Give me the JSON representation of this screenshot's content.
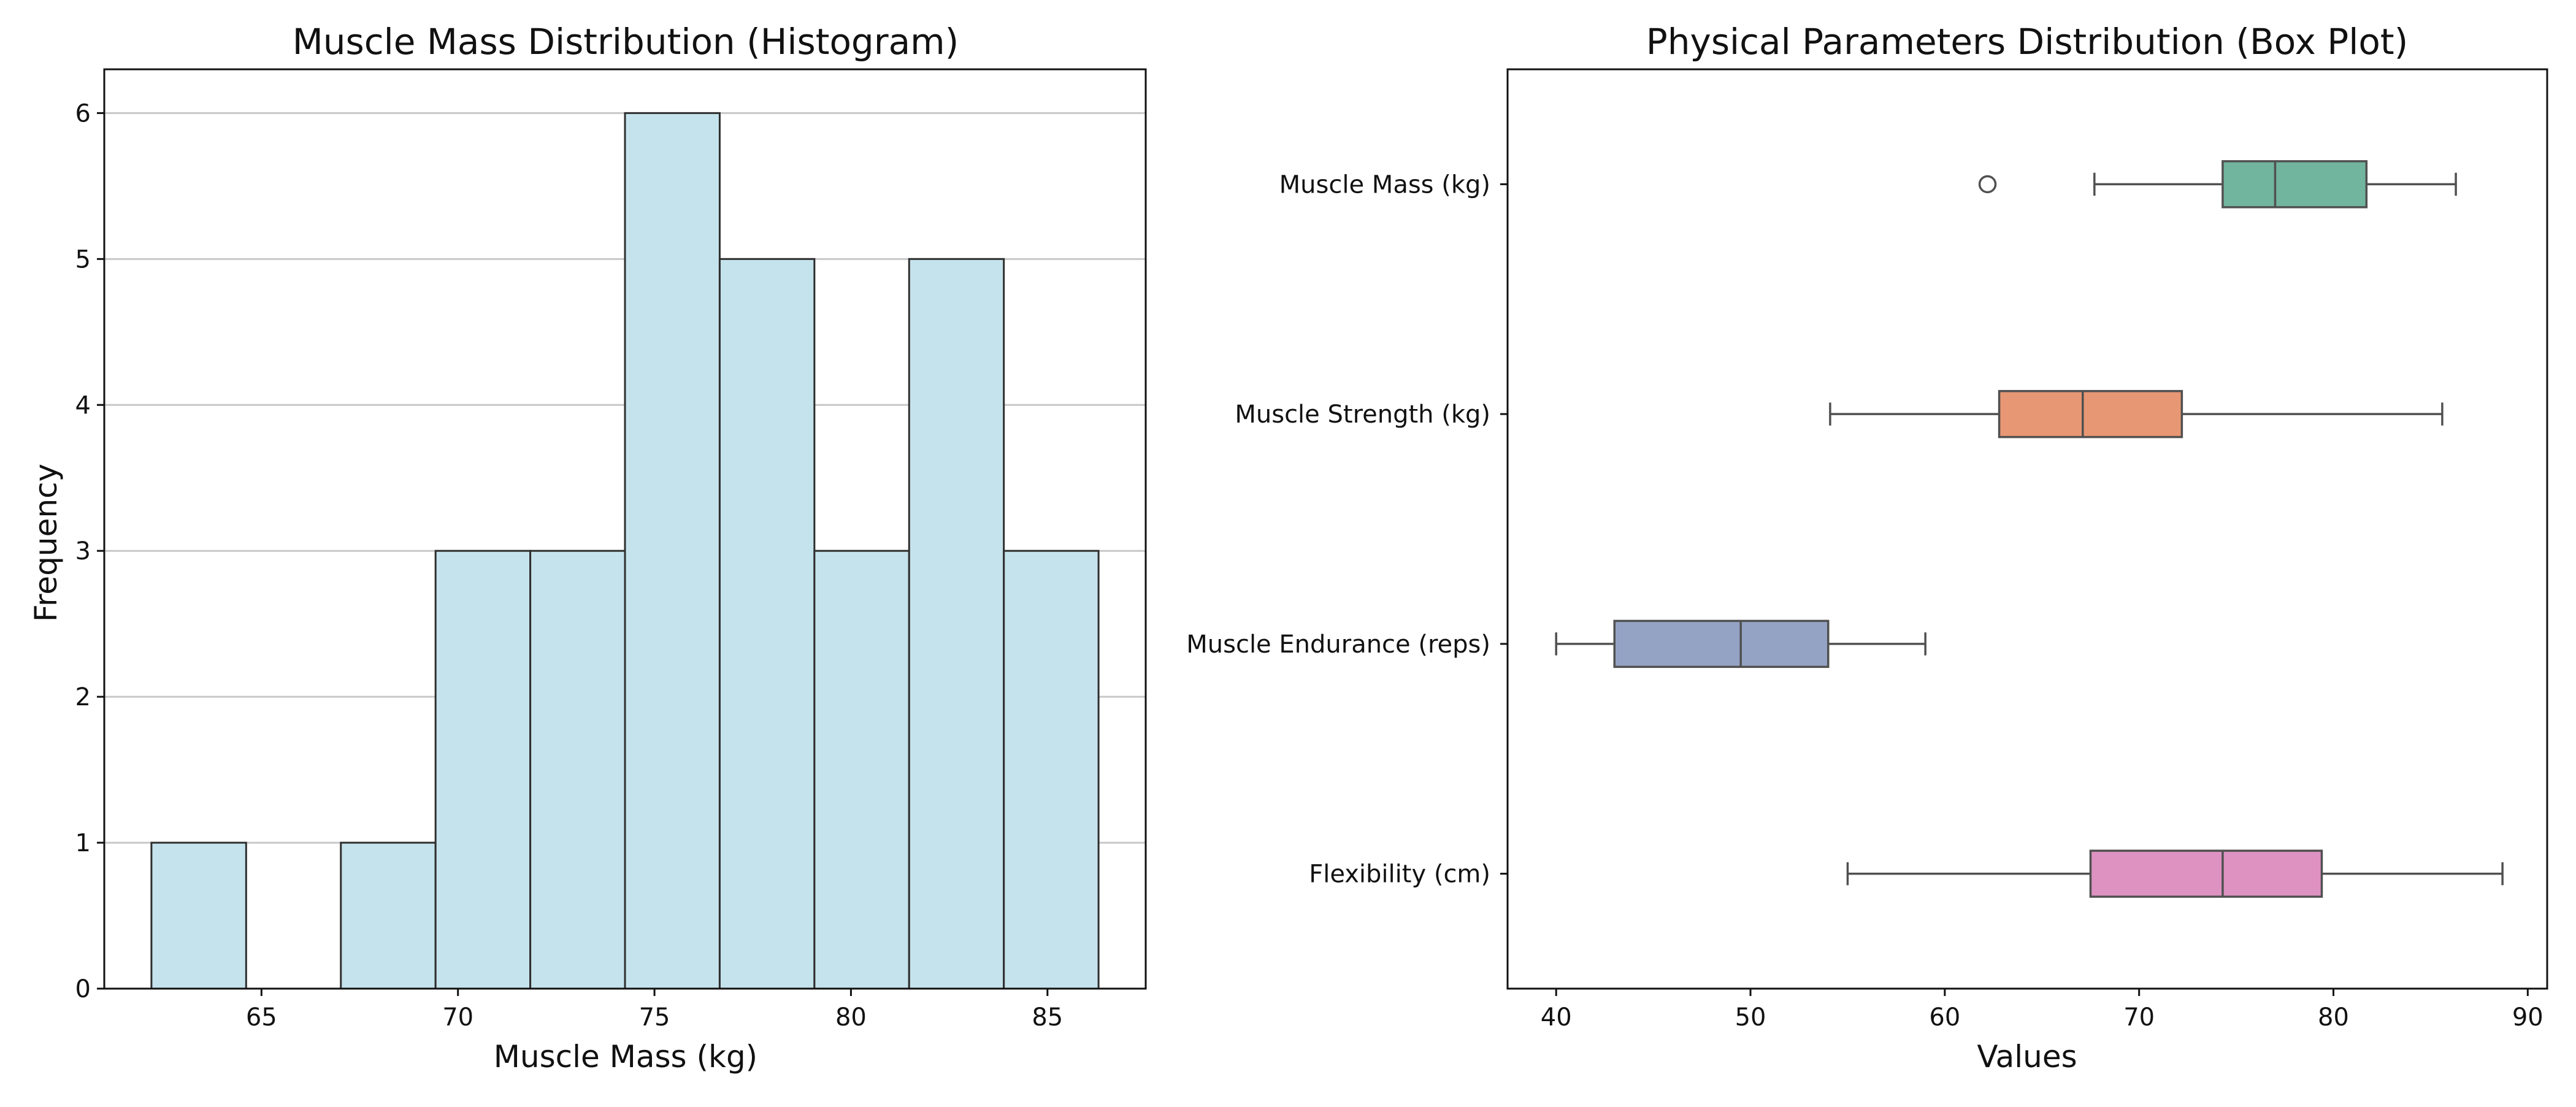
{
  "chart_data": [
    {
      "type": "bar",
      "subtype": "histogram",
      "title": "Muscle Mass Distribution (Histogram)",
      "xlabel": "Muscle Mass (kg)",
      "ylabel": "Frequency",
      "xlim": [
        61.0,
        87.5
      ],
      "ylim": [
        0,
        6.3
      ],
      "bin_edges": [
        62.2,
        64.61,
        67.02,
        69.43,
        71.84,
        74.25,
        76.66,
        79.07,
        81.48,
        83.89,
        86.3
      ],
      "values": [
        1,
        0,
        1,
        3,
        3,
        6,
        5,
        3,
        5,
        3
      ],
      "x_ticks": [
        "65",
        "70",
        "75",
        "80",
        "85"
      ],
      "y_ticks": [
        "0",
        "1",
        "2",
        "3",
        "4",
        "5",
        "6"
      ],
      "grid": "y",
      "colors": {
        "bar_fill": "#c5e3ec",
        "bar_edge": "#2f2f2f"
      }
    },
    {
      "type": "box",
      "title": "Physical Parameters Distribution (Box Plot)",
      "xlabel": "Values",
      "ylabel": "",
      "xlim": [
        37.5,
        91.0
      ],
      "x_ticks": [
        "40",
        "50",
        "60",
        "70",
        "80",
        "90"
      ],
      "grid": "none",
      "series": [
        {
          "name": "Muscle Mass (kg)",
          "whisker_low": 67.7,
          "q1": 74.3,
          "median": 77.0,
          "q3": 81.7,
          "whisker_high": 86.3,
          "outliers": [
            62.2
          ],
          "color": "#72b59f"
        },
        {
          "name": "Muscle Strength (kg)",
          "whisker_low": 54.1,
          "q1": 62.8,
          "median": 67.1,
          "q3": 72.2,
          "whisker_high": 85.6,
          "outliers": [],
          "color": "#e89774"
        },
        {
          "name": "Muscle Endurance (reps)",
          "whisker_low": 40.0,
          "q1": 43.0,
          "median": 49.5,
          "q3": 54.0,
          "whisker_high": 59.0,
          "outliers": [],
          "color": "#94a3c4"
        },
        {
          "name": "Flexibility (cm)",
          "whisker_low": 55.0,
          "q1": 67.5,
          "median": 74.3,
          "q3": 79.4,
          "whisker_high": 88.7,
          "outliers": [],
          "color": "#dd92c2"
        }
      ]
    }
  ]
}
